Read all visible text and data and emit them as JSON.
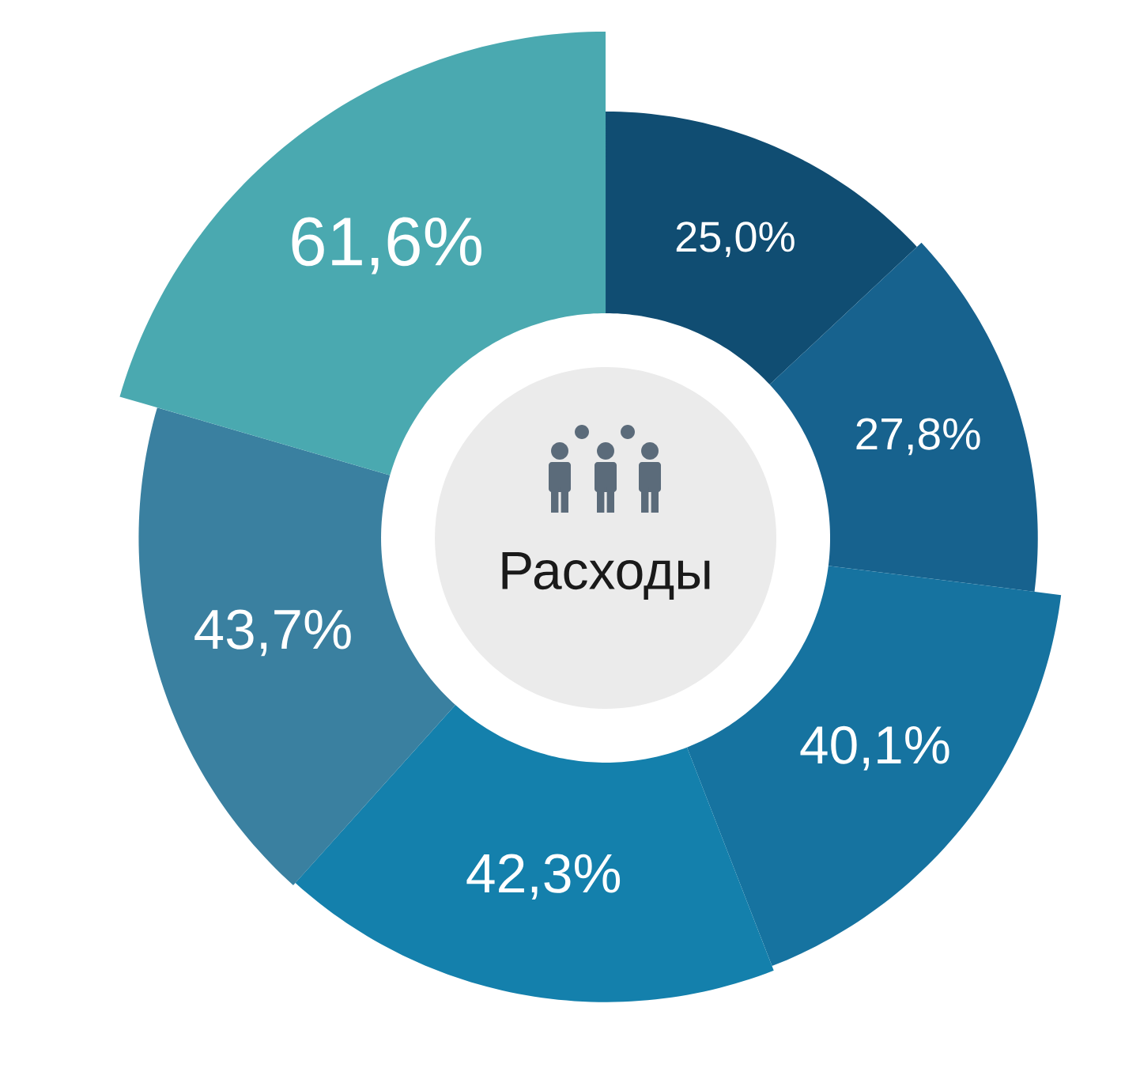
{
  "chart_data": {
    "type": "donut",
    "title": "Расходы",
    "categories": [
      null,
      null,
      null,
      null,
      null,
      null
    ],
    "values": [
      25.0,
      27.8,
      40.1,
      42.3,
      43.7,
      61.6
    ],
    "value_labels": [
      "25,0%",
      "27,8%",
      "40,1%",
      "42,3%",
      "43,7%",
      "61,6%"
    ],
    "colors": [
      "#104d72",
      "#17628e",
      "#1673a0",
      "#1480ac",
      "#3a80a0",
      "#4aa9b0"
    ]
  }
}
